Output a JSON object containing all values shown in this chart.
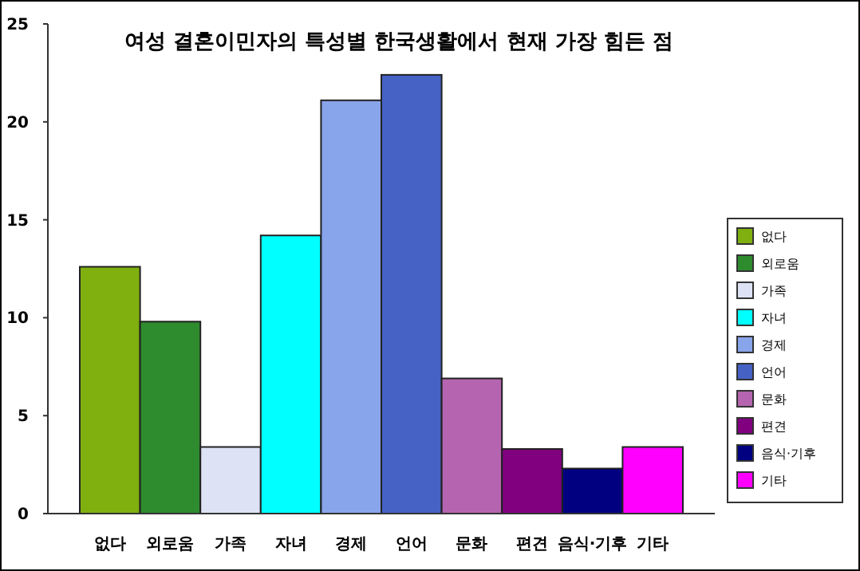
{
  "chart_data": {
    "type": "bar",
    "title": "여성 결혼이민자의 특성별 한국생활에서 현재 가장 힘든 점",
    "categories": [
      "없다",
      "외로움",
      "가족",
      "자녀",
      "경제",
      "언어",
      "문화",
      "편견",
      "음식·기후",
      "기타"
    ],
    "series": [
      {
        "name": "없다",
        "color": "#80b010",
        "values": [
          12.6,
          null,
          null,
          null,
          null,
          null,
          null,
          null,
          null,
          null
        ]
      },
      {
        "name": "외로움",
        "color": "#2e8b2e",
        "values": [
          null,
          9.8,
          null,
          null,
          null,
          null,
          null,
          null,
          null,
          null
        ]
      },
      {
        "name": "가족",
        "color": "#dde3f5",
        "values": [
          null,
          null,
          3.4,
          null,
          null,
          null,
          null,
          null,
          null,
          null
        ]
      },
      {
        "name": "자녀",
        "color": "#00ffff",
        "values": [
          null,
          null,
          null,
          14.2,
          null,
          null,
          null,
          null,
          null,
          null
        ]
      },
      {
        "name": "경제",
        "color": "#88a4ea",
        "values": [
          null,
          null,
          null,
          null,
          21.1,
          null,
          null,
          null,
          null,
          null
        ]
      },
      {
        "name": "언어",
        "color": "#4562c4",
        "values": [
          null,
          null,
          null,
          null,
          null,
          22.4,
          null,
          null,
          null,
          null
        ]
      },
      {
        "name": "문화",
        "color": "#b565b0",
        "values": [
          null,
          null,
          null,
          null,
          null,
          null,
          6.9,
          null,
          null,
          null
        ]
      },
      {
        "name": "편견",
        "color": "#800080",
        "values": [
          null,
          null,
          null,
          null,
          null,
          null,
          null,
          3.3,
          null,
          null
        ]
      },
      {
        "name": "음식·기후",
        "color": "#000080",
        "values": [
          null,
          null,
          null,
          null,
          null,
          null,
          null,
          null,
          2.3,
          null
        ]
      },
      {
        "name": "기타",
        "color": "#ff00ff",
        "values": [
          null,
          null,
          null,
          null,
          null,
          null,
          null,
          null,
          null,
          3.4
        ]
      }
    ],
    "ylim": [
      0,
      25
    ],
    "yticks": [
      0,
      5,
      10,
      15,
      20,
      25
    ],
    "grid": false,
    "legend": "right"
  }
}
